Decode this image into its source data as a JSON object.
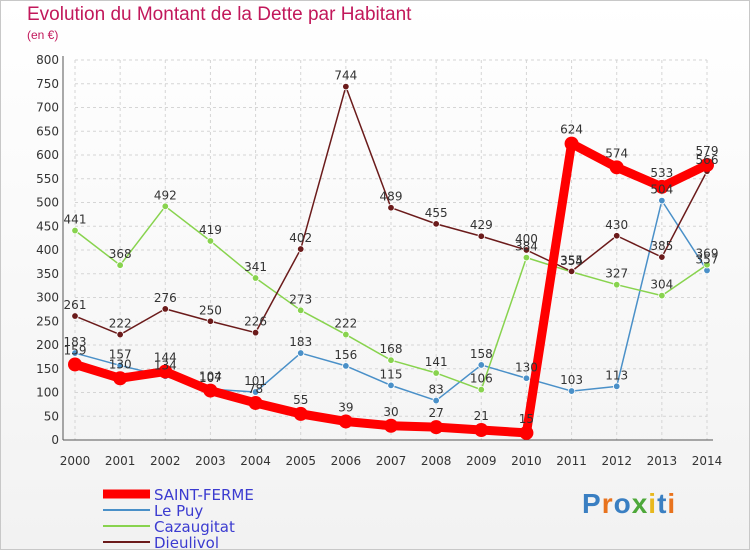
{
  "chart_data": {
    "type": "line",
    "title": "Evolution du Montant de la Dette par Habitant",
    "subtitle": "(en €)",
    "x": [
      "2000",
      "2001",
      "2002",
      "2003",
      "2004",
      "2005",
      "2006",
      "2007",
      "2008",
      "2009",
      "2010",
      "2011",
      "2012",
      "2013",
      "2014"
    ],
    "ylim": [
      0,
      800
    ],
    "yticks": [
      0,
      50,
      100,
      150,
      200,
      250,
      300,
      350,
      400,
      450,
      500,
      550,
      600,
      650,
      700,
      750,
      800
    ],
    "grid": true,
    "legend_position": "bottom-left",
    "series": [
      {
        "name": "SAINT-FERME",
        "color": "#ff0000",
        "values": [
          159,
          130,
          144,
          104,
          78,
          55,
          39,
          30,
          27,
          21,
          15,
          624,
          574,
          533,
          579
        ]
      },
      {
        "name": "Le Puy",
        "color": "#4a90c8",
        "values": [
          183,
          157,
          134,
          107,
          101,
          183,
          156,
          115,
          83,
          158,
          130,
          103,
          113,
          504,
          357
        ]
      },
      {
        "name": "Cazaugitat",
        "color": "#88d34e",
        "values": [
          441,
          368,
          492,
          419,
          341,
          273,
          222,
          168,
          141,
          106,
          384,
          354,
          327,
          304,
          369
        ]
      },
      {
        "name": "Dieulivol",
        "color": "#6b1b1b",
        "values": [
          261,
          222,
          276,
          250,
          226,
          402,
          744,
          489,
          455,
          429,
          400,
          355,
          430,
          385,
          566
        ]
      }
    ]
  },
  "logo": {
    "text": "Proxiti",
    "colors": [
      "#3a7fc2",
      "#e8731e",
      "#3a7fc2",
      "#4ea83a",
      "#e8b81e",
      "#3a7fc2",
      "#e8731e"
    ]
  }
}
